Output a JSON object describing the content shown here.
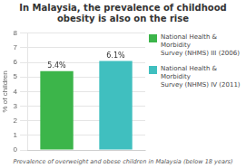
{
  "chart_data": {
    "type": "bar",
    "title": "In Malaysia, the prevalence of childhood\nobesity is also on the rise",
    "categories": [
      null,
      null
    ],
    "series": [
      {
        "name": "National Health & Morbidity\nSurvey (NHMS) III (2006)",
        "color": "#3cb54a",
        "values": [
          5.4,
          null
        ],
        "value_labels": [
          "5.4%",
          null
        ]
      },
      {
        "name": "National Health & Morbidity\nSurvey (NHMS) IV (2011)",
        "color": "#40bfbf",
        "values": [
          null,
          6.1
        ],
        "value_labels": [
          null,
          "6.1%"
        ]
      }
    ],
    "ylabel": "% of children",
    "xlabel": "Prevalence of overweight and obese children in Malaysia (below 18 years)",
    "ylim": [
      0,
      8
    ],
    "yticks": [
      0,
      1,
      2,
      3,
      4,
      5,
      6,
      7,
      8
    ],
    "grid": true,
    "legend": "right",
    "data_labels": true
  }
}
